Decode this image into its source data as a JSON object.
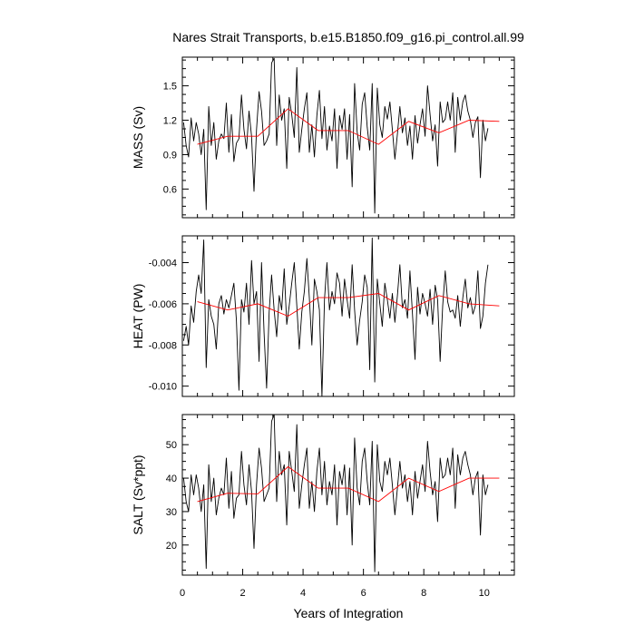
{
  "title": "Nares Strait Transports, b.e15.B1850.f09_g16.pi_control.all.99",
  "chart_data": {
    "type": "line",
    "title": "Nares Strait Transports, b.e15.B1850.f09_g16.pi_control.all.99",
    "xlabel": "Years of Integration",
    "xlim": [
      0,
      11
    ],
    "xticks": [
      0,
      2,
      4,
      6,
      8,
      10
    ],
    "xtick_labels": [
      "0",
      "2",
      "4",
      "6",
      "8",
      "10"
    ],
    "grid": false,
    "line_colors": {
      "monthly": "#000000",
      "annual": "#ff0000"
    },
    "panels": [
      {
        "ylabel": "MASS (Sv)",
        "ylim": [
          0.35,
          1.75
        ],
        "yticks": [
          0.6,
          0.9,
          1.2,
          1.5
        ],
        "ytick_labels": [
          "0.6",
          "0.9",
          "1.2",
          "1.5"
        ],
        "series": [
          {
            "values": [
              1.18,
              0.98,
              0.88,
              1.22,
              1.02,
              1.18,
              1.08,
              0.9,
              1.12,
              0.42,
              1.32,
              0.98,
              1.18,
              0.86,
              1.02,
              1.08,
              1.04,
              1.35,
              0.92,
              1.25,
              0.84,
              1.0,
              1.04,
              1.42,
              1.12,
              0.95,
              1.28,
              1.06,
              0.58,
              1.12,
              1.45,
              1.28,
              0.98,
              1.02,
              1.08,
              1.7,
              1.74,
              0.98,
              1.42,
              1.2,
              1.3,
              0.78,
              1.4,
              1.25,
              1.05,
              1.66,
              0.92,
              1.12,
              1.3,
              1.44,
              0.92,
              1.16,
              0.88,
              1.24,
              1.46,
              1.04,
              1.32,
              0.94,
              1.15,
              1.02,
              1.3,
              0.78,
              1.24,
              1.12,
              1.3,
              0.86,
              1.25,
              0.62,
              1.52,
              1.1,
              0.94,
              1.34,
              1.44,
              1.14,
              0.94,
              1.52,
              0.39,
              1.48,
              1.16,
              1.05,
              1.32,
              1.21,
              1.36,
              1.12,
              0.86,
              1.08,
              1.32,
              1.09,
              1.22,
              0.98,
              1.15,
              0.86,
              1.24,
              1.0,
              1.16,
              1.3,
              1.06,
              1.5,
              1.25,
              1.02,
              1.16,
              0.8,
              1.36,
              1.18,
              1.21,
              1.36,
              1.2,
              1.44,
              0.92,
              1.4,
              1.2,
              1.36,
              1.42,
              1.28,
              1.2,
              1.05,
              1.18,
              1.23,
              0.7,
              1.2,
              1.02,
              1.13
            ]
          },
          {
            "values": [
              0.99,
              1.06,
              1.06,
              1.3,
              1.11,
              1.11,
              0.99,
              1.19,
              1.09,
              1.2,
              1.19
            ]
          }
        ]
      },
      {
        "ylabel": "HEAT (PW)",
        "ylim": [
          -0.0105,
          -0.0027
        ],
        "yticks": [
          -0.01,
          -0.008,
          -0.006,
          -0.004
        ],
        "ytick_labels": [
          "-0.010",
          "-0.008",
          "-0.006",
          "-0.004"
        ],
        "series": [
          {
            "values": [
              -0.0078,
              -0.0071,
              -0.008,
              -0.0061,
              -0.0069,
              -0.0054,
              -0.0046,
              -0.0055,
              -0.0029,
              -0.0091,
              -0.0058,
              -0.0066,
              -0.007,
              -0.0082,
              -0.006,
              -0.0056,
              -0.0065,
              -0.0058,
              -0.0062,
              -0.0056,
              -0.005,
              -0.0068,
              -0.0102,
              -0.0058,
              -0.0064,
              -0.005,
              -0.007,
              -0.0039,
              -0.006,
              -0.0054,
              -0.0088,
              -0.004,
              -0.0074,
              -0.0101,
              -0.0064,
              -0.0046,
              -0.0063,
              -0.0076,
              -0.0056,
              -0.0063,
              -0.0043,
              -0.007,
              -0.0061,
              -0.005,
              -0.004,
              -0.0061,
              -0.0082,
              -0.0064,
              -0.0054,
              -0.0038,
              -0.0057,
              -0.008,
              -0.0048,
              -0.0054,
              -0.0063,
              -0.0105,
              -0.0058,
              -0.004,
              -0.0063,
              -0.0054,
              -0.006,
              -0.0045,
              -0.005,
              -0.0066,
              -0.0048,
              -0.0058,
              -0.0067,
              -0.0041,
              -0.0063,
              -0.008,
              -0.0068,
              -0.0059,
              -0.0046,
              -0.0052,
              -0.0092,
              -0.0028,
              -0.0098,
              -0.0048,
              -0.006,
              -0.0071,
              -0.005,
              -0.0058,
              -0.0067,
              -0.0055,
              -0.0069,
              -0.0056,
              -0.0041,
              -0.0062,
              -0.0058,
              -0.0067,
              -0.0044,
              -0.0065,
              -0.0087,
              -0.0052,
              -0.0065,
              -0.0055,
              -0.006,
              -0.0066,
              -0.0053,
              -0.007,
              -0.0051,
              -0.0058,
              -0.0088,
              -0.0061,
              -0.0044,
              -0.0059,
              -0.0064,
              -0.0063,
              -0.0067,
              -0.0056,
              -0.0071,
              -0.0057,
              -0.0048,
              -0.0062,
              -0.0057,
              -0.0065,
              -0.0061,
              -0.0044,
              -0.0072,
              -0.0066,
              -0.005,
              -0.0041
            ]
          },
          {
            "values": [
              -0.0059,
              -0.0063,
              -0.006,
              -0.0066,
              -0.0057,
              -0.0057,
              -0.0055,
              -0.0063,
              -0.0056,
              -0.006,
              -0.0061
            ]
          }
        ]
      },
      {
        "ylabel": "SALT (Sv*ppt)",
        "ylim": [
          11,
          59
        ],
        "yticks": [
          20,
          30,
          40,
          50
        ],
        "ytick_labels": [
          "20",
          "30",
          "40",
          "50"
        ],
        "series": [
          {
            "values": [
              40,
              33,
              30,
              41,
              35,
              41,
              37,
              30,
              38,
              13,
              44,
              33,
              40,
              29,
              34,
              37,
              35,
              46,
              31,
              42,
              28,
              34,
              35,
              48,
              38,
              32,
              44,
              36,
              19,
              38,
              49,
              43,
              33,
              35,
              37,
              57,
              59,
              33,
              48,
              41,
              44,
              26,
              48,
              42,
              36,
              56,
              31,
              38,
              44,
              49,
              31,
              39,
              30,
              42,
              49,
              35,
              45,
              32,
              39,
              35,
              44,
              26,
              42,
              38,
              44,
              29,
              43,
              20,
              52,
              37,
              32,
              45,
              49,
              39,
              32,
              51,
              12,
              50,
              39,
              36,
              45,
              41,
              46,
              38,
              29,
              37,
              45,
              37,
              41,
              33,
              39,
              29,
              42,
              34,
              39,
              44,
              36,
              51,
              42,
              35,
              39,
              27,
              46,
              40,
              41,
              46,
              41,
              49,
              31,
              47,
              41,
              46,
              48,
              44,
              41,
              35,
              40,
              42,
              23,
              41,
              35,
              38
            ]
          },
          {
            "values": [
              33,
              35.5,
              35.3,
              43.4,
              37,
              37,
              33,
              40,
              36,
              40,
              40
            ]
          }
        ]
      }
    ]
  }
}
